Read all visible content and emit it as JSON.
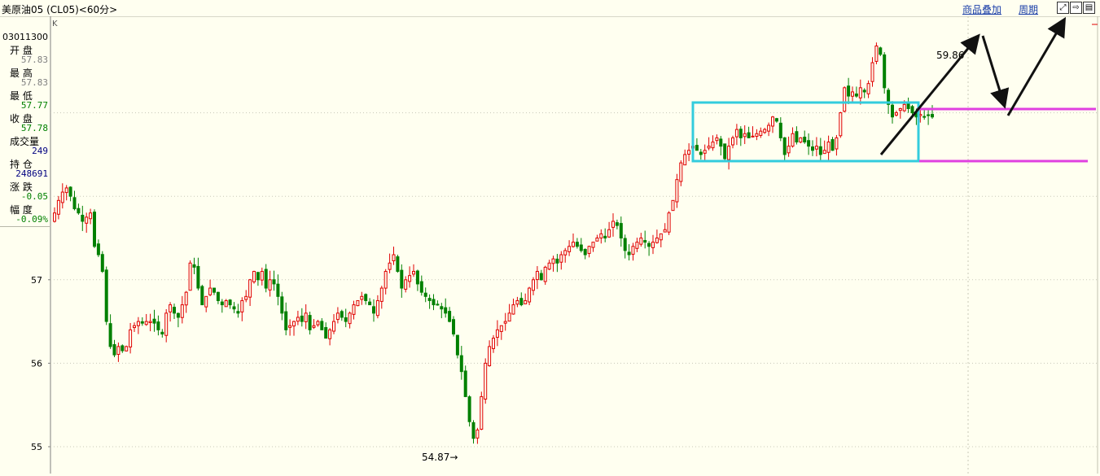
{
  "window": {
    "title": "美原油05 (CL05)<60分>",
    "toolbar_links": [
      "商品叠加",
      "周期"
    ],
    "toolbar_buttons": [
      "zoom-icon",
      "arrow-right-icon",
      "split-icon"
    ]
  },
  "info_panel": {
    "time": "03011300",
    "rows": [
      {
        "label": "开 盘",
        "value": "57.83",
        "color": "#808080"
      },
      {
        "label": "最 高",
        "value": "57.83",
        "color": "#808080"
      },
      {
        "label": "最 低",
        "value": "57.77",
        "color": "#008000"
      },
      {
        "label": "收 盘",
        "value": "57.78",
        "color": "#008000"
      },
      {
        "label": "成交量",
        "value": "249",
        "color": "#000080"
      },
      {
        "label": "持 仓",
        "value": "248691",
        "color": "#000080"
      },
      {
        "label": "涨 跌",
        "value": "-0.05",
        "color": "#008000"
      },
      {
        "label": "幅 度",
        "value": "-0.09%",
        "color": "#008000"
      }
    ]
  },
  "chart_data": {
    "type": "candlestick",
    "period": "60分",
    "y_ticks": [
      "57",
      "56",
      "55"
    ],
    "ylim": [
      54.8,
      59.95
    ],
    "grid": "dotted",
    "high_label": "59.86",
    "low_label": "54.87",
    "k_marker": "K",
    "up_color": "#E00000",
    "down_color": "#008000",
    "closes": [
      57.8,
      57.95,
      58.05,
      58.1,
      58.0,
      57.85,
      57.8,
      57.7,
      57.75,
      57.8,
      57.4,
      57.3,
      57.1,
      56.5,
      56.2,
      56.1,
      56.2,
      56.15,
      56.2,
      56.4,
      56.45,
      56.5,
      56.48,
      56.5,
      56.5,
      56.48,
      56.4,
      56.35,
      56.6,
      56.7,
      56.6,
      56.55,
      56.7,
      56.85,
      57.2,
      57.15,
      56.9,
      56.7,
      56.8,
      56.9,
      56.85,
      56.75,
      56.7,
      56.75,
      56.7,
      56.65,
      56.6,
      56.75,
      56.8,
      57.0,
      57.1,
      57.0,
      57.1,
      56.9,
      57.0,
      56.95,
      56.8,
      56.6,
      56.4,
      56.45,
      56.5,
      56.55,
      56.5,
      56.6,
      56.4,
      56.45,
      56.5,
      56.4,
      56.3,
      56.4,
      56.5,
      56.6,
      56.55,
      56.5,
      56.6,
      56.7,
      56.75,
      56.8,
      56.75,
      56.7,
      56.6,
      56.75,
      56.9,
      57.1,
      57.2,
      57.3,
      57.1,
      56.9,
      57.0,
      57.05,
      57.1,
      56.95,
      56.85,
      56.8,
      56.75,
      56.7,
      56.7,
      56.65,
      56.6,
      56.5,
      56.35,
      56.1,
      55.9,
      55.6,
      55.3,
      55.1,
      55.2,
      55.6,
      56.0,
      56.2,
      56.3,
      56.4,
      56.45,
      56.5,
      56.6,
      56.7,
      56.75,
      56.7,
      56.75,
      56.9,
      57.0,
      57.1,
      57.0,
      57.15,
      57.2,
      57.25,
      57.2,
      57.3,
      57.35,
      57.4,
      57.45,
      57.4,
      57.35,
      57.3,
      57.4,
      57.45,
      57.5,
      57.55,
      57.5,
      57.6,
      57.7,
      57.65,
      57.5,
      57.35,
      57.3,
      57.4,
      57.45,
      57.5,
      57.45,
      57.4,
      57.45,
      57.5,
      57.55,
      57.6,
      57.8,
      57.95,
      58.2,
      58.4,
      58.5,
      58.55,
      58.6,
      58.55,
      58.5,
      58.55,
      58.6,
      58.65,
      58.7,
      58.6,
      58.45,
      58.6,
      58.7,
      58.8,
      58.7,
      58.75,
      58.7,
      58.72,
      58.75,
      58.78,
      58.8,
      58.85,
      58.95,
      58.9,
      58.7,
      58.5,
      58.6,
      58.75,
      58.65,
      58.7,
      58.65,
      58.6,
      58.55,
      58.6,
      58.5,
      58.55,
      58.65,
      58.55,
      58.7,
      59.0,
      59.3,
      59.2,
      59.25,
      59.2,
      59.3,
      59.25,
      59.35,
      59.6,
      59.8,
      59.7,
      59.3,
      59.1,
      58.95,
      59.0,
      59.05,
      59.1,
      59.05,
      59.0,
      58.95,
      58.98,
      58.95,
      58.97,
      58.95
    ]
  },
  "annotations": {
    "consolidation_box_color": "#33CCDD",
    "support_line_color": "#E040E0",
    "arrow_color": "#111111"
  },
  "watermark": "···"
}
